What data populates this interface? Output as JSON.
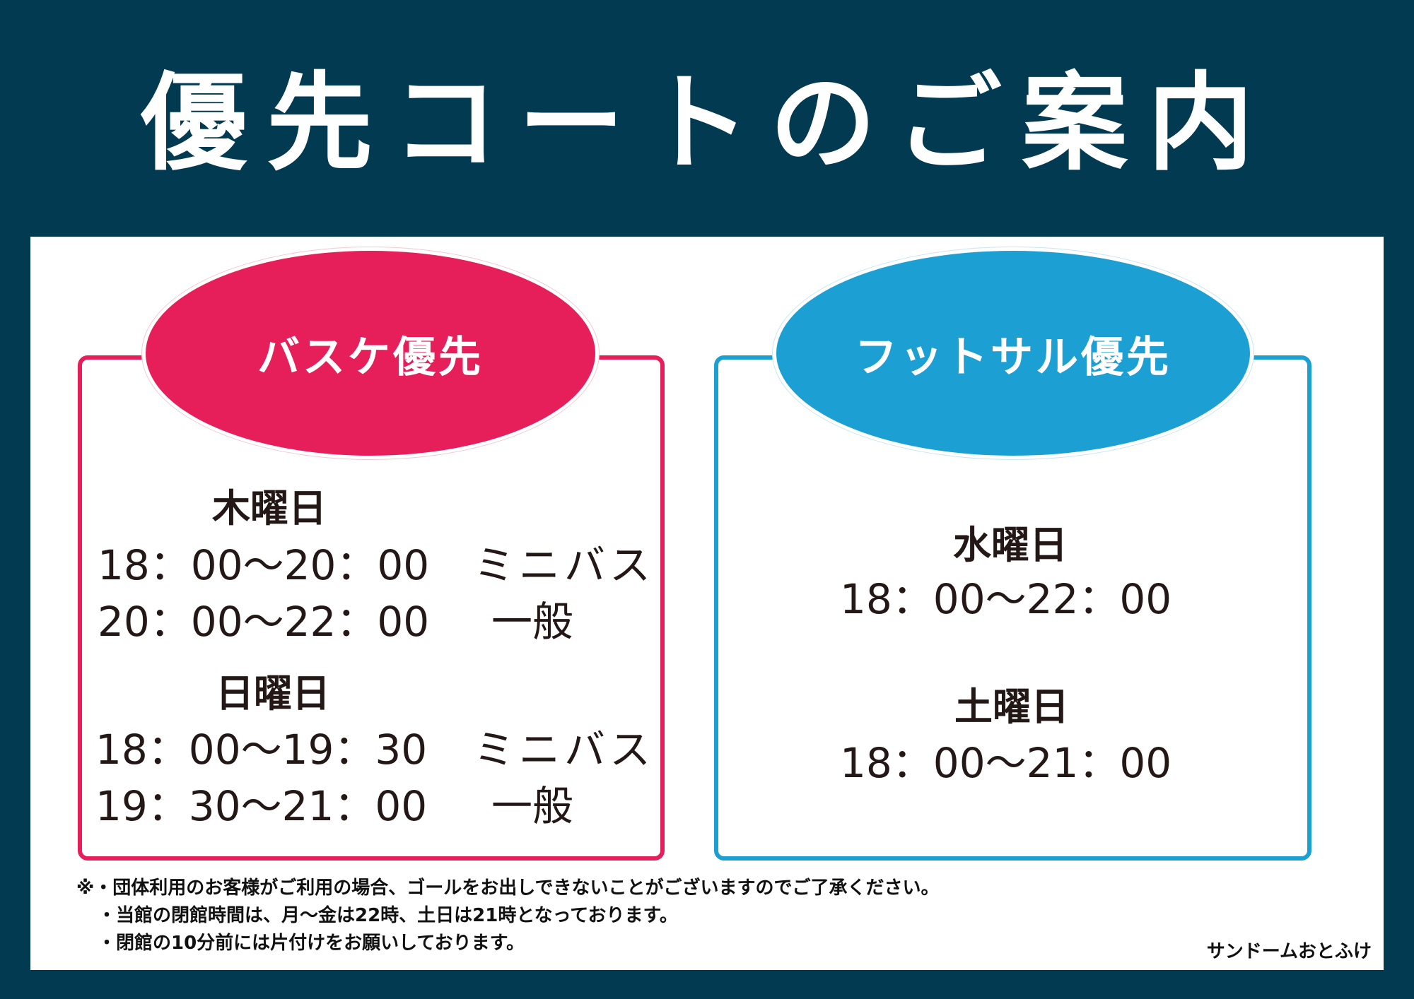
{
  "title": "優先コートのご案内",
  "colors": {
    "background": "#023a51",
    "basketball": "#e61f5b",
    "futsal": "#1ca0d3"
  },
  "basketball": {
    "label": "バスケ優先",
    "schedule": [
      {
        "day": "木曜日",
        "slots": [
          {
            "time": "18：00〜20：00",
            "group": "ミニバス"
          },
          {
            "time": "20：00〜22：00",
            "group": "一般"
          }
        ]
      },
      {
        "day": "日曜日",
        "slots": [
          {
            "time": "18：00〜19：30",
            "group": "ミニバス"
          },
          {
            "time": "19：30〜21：00",
            "group": "一般"
          }
        ]
      }
    ]
  },
  "futsal": {
    "label": "フットサル優先",
    "schedule": [
      {
        "day": "水曜日",
        "time": "18：00〜22：00"
      },
      {
        "day": "土曜日",
        "time": "18：00〜21：00"
      }
    ]
  },
  "notes": [
    "※・団体利用のお客様がご利用の場合、ゴールをお出しできないことがございますのでご了承ください。",
    "・当館の閉館時間は、月〜金は22時、土日は21時となっております。",
    "・閉館の10分前には片付けをお願いしております。"
  ],
  "credit": "サンドームおとふけ"
}
